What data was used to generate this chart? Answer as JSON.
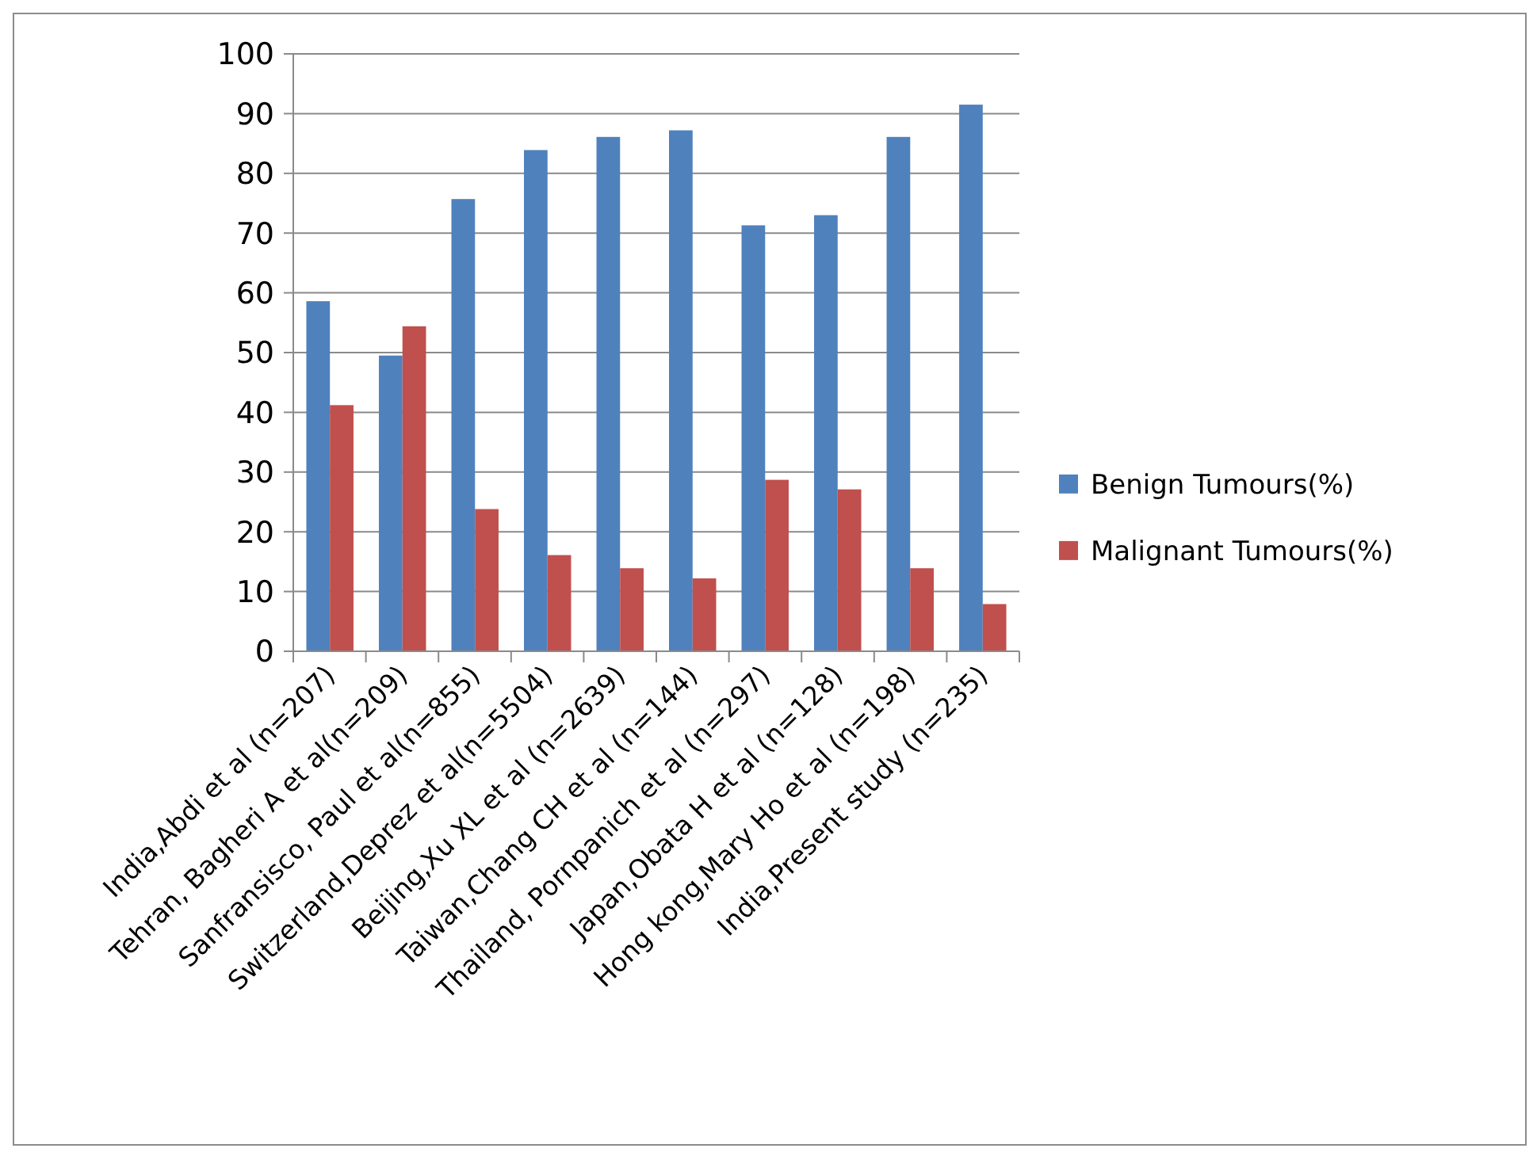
{
  "chart_data": {
    "type": "bar",
    "categories": [
      "India,Abdi et al  (n=207)",
      "Tehran, Bagheri A et al(n=209)",
      "Sanfransisco, Paul et al(n=855)",
      "Switzerland,Deprez et al(n=5504)",
      "Beijing,Xu XL et al (n=2639)",
      "Taiwan,Chang CH et al (n=144)",
      "Thailand, Pornpanich et al (n=297)",
      "Japan,Obata H et al (n=128)",
      "Hong kong,Mary Ho et al (n=198)",
      "India,Present study (n=235)"
    ],
    "series": [
      {
        "name": "Benign Tumours(%)",
        "color": "#4f81bd",
        "values": [
          58.6,
          49.5,
          75.7,
          83.9,
          86.1,
          87.2,
          71.3,
          73.0,
          86.1,
          91.5
        ]
      },
      {
        "name": "Malignant Tumours(%)",
        "color": "#c0504d",
        "values": [
          41.2,
          54.4,
          23.8,
          16.1,
          13.9,
          12.2,
          28.7,
          27.1,
          13.9,
          7.9
        ]
      }
    ],
    "ylim": [
      0,
      100
    ],
    "yticks": [
      0,
      10,
      20,
      30,
      40,
      50,
      60,
      70,
      80,
      90,
      100
    ],
    "grid": "y",
    "legend": "right"
  }
}
